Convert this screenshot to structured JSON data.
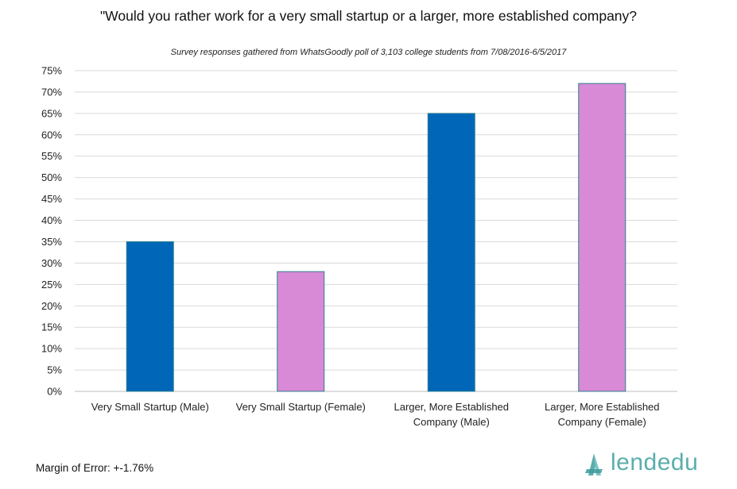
{
  "chart_data": {
    "type": "bar",
    "title": "\"Would you rather work for a very small startup or a larger, more established company?",
    "subtitle": "Survey responses gathered from WhatsGoodly poll of 3,103 college students from 7/08/2016-6/5/2017",
    "categories": [
      [
        "Very Small Startup (Male)"
      ],
      [
        "Very Small Startup (Female)"
      ],
      [
        "Larger, More Established",
        "Company (Male)"
      ],
      [
        "Larger, More Established",
        "Company (Female)"
      ]
    ],
    "values": [
      35,
      28,
      65,
      72
    ],
    "bar_colors": [
      "#0066b8",
      "#d88ad6",
      "#0066b8",
      "#d88ad6"
    ],
    "ylim": [
      0,
      75
    ],
    "ytick_step": 5,
    "ytick_suffix": "%",
    "xlabel": "",
    "ylabel": "",
    "grid": true
  },
  "footer": {
    "margin_of_error": "Margin of Error: +-1.76%"
  },
  "logo": {
    "text": "lendedu",
    "color": "#5aaeae"
  }
}
